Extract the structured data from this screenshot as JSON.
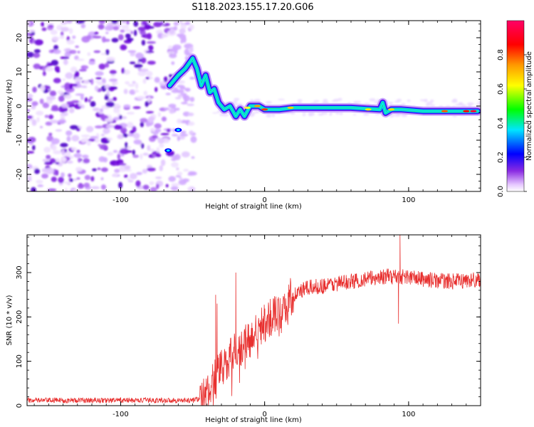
{
  "title": "S118.2023.155.17.20.G06",
  "chart_data": [
    {
      "type": "heatmap",
      "xlabel": "Height of straight line (km)",
      "ylabel": "Frequency (Hz)",
      "xlim": [
        -165,
        150
      ],
      "ylim": [
        -25,
        25
      ],
      "xticks": [
        -100,
        0,
        100
      ],
      "yticks": [
        -20,
        -10,
        0,
        10,
        20
      ],
      "colorbar": {
        "label": "Normalized spectral amplitude",
        "range": [
          0,
          1
        ],
        "ticks": [
          "0.0",
          "0.2",
          "0.4",
          "0.6",
          "0.8"
        ],
        "colors": [
          "#ffffff",
          "#e6c8ff",
          "#8a2be2",
          "#0000ff",
          "#00e5ff",
          "#00ff00",
          "#ffff00",
          "#ff9900",
          "#ff0000",
          "#ff0066"
        ]
      },
      "ridge": {
        "description_free": true,
        "x": [
          -66,
          -60,
          -55,
          -50,
          -47,
          -44,
          -41,
          -38,
          -35,
          -32,
          -28,
          -24,
          -20,
          -17,
          -14,
          -10,
          -7,
          -4,
          0,
          10,
          20,
          40,
          60,
          80,
          82,
          84,
          88,
          95,
          110,
          130,
          148
        ],
        "y": [
          6,
          9,
          11,
          14,
          11,
          6,
          9,
          4,
          5,
          1,
          -1,
          0,
          -3,
          -1,
          -3,
          0,
          0,
          0,
          -1,
          -1,
          -0.5,
          -0.5,
          -0.5,
          -1,
          1,
          -2,
          -1,
          -1,
          -1.5,
          -1.5,
          -1.5
        ]
      },
      "noise_region_x_max": -55
    },
    {
      "type": "line",
      "xlabel": "Height of straight line (km)",
      "ylabel": "SNR (10 * v/v)",
      "xlim": [
        -165,
        150
      ],
      "ylim": [
        0,
        385
      ],
      "xticks": [
        -100,
        0,
        100
      ],
      "yticks": [
        0,
        100,
        200,
        300
      ],
      "color": "#e8302f",
      "trend": {
        "x": [
          -165,
          -50,
          -42,
          -38,
          -33,
          -28,
          -22,
          -15,
          -8,
          0,
          10,
          20,
          30,
          40,
          50,
          60,
          70,
          80,
          90,
          100,
          110,
          120,
          130,
          140,
          150
        ],
        "y": [
          12,
          12,
          18,
          40,
          70,
          90,
          115,
          135,
          155,
          185,
          215,
          250,
          265,
          270,
          275,
          280,
          285,
          290,
          292,
          290,
          285,
          282,
          280,
          282,
          285
        ]
      },
      "spikes": [
        {
          "x": -34,
          "y": 250
        },
        {
          "x": -33,
          "y": 230
        },
        {
          "x": -20,
          "y": 300
        },
        {
          "x": 94,
          "y": 385
        },
        {
          "x": 93,
          "y": 185
        }
      ]
    }
  ]
}
